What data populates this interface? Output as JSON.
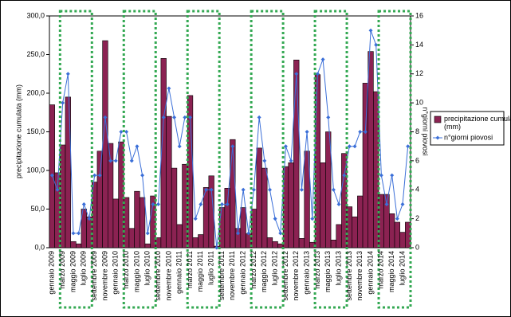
{
  "chart_data": {
    "type": "bar-line",
    "categories": [
      "gennaio 2009",
      null,
      "marzo 2009",
      null,
      "maggio 2009",
      null,
      "luglio 2009",
      null,
      "settembre 2009",
      null,
      "novembre 2009",
      null,
      "gennaio 2010",
      null,
      "marzo 2010",
      null,
      "maggio 2010",
      null,
      "luglio 2010",
      null,
      "settembre 2010",
      null,
      "novembre 2010",
      null,
      "gennaio 2011",
      null,
      "marzo 2011",
      null,
      "maggio 2011",
      null,
      "luglio 2011",
      null,
      "settembre 2011",
      null,
      "novembre 2011",
      null,
      "gennaio 2012",
      null,
      "marzo 2012",
      null,
      "maggio 2012",
      null,
      "luglio 2012",
      null,
      "settembre 2012",
      null,
      "novembre 2012",
      null,
      "gennaio 2013",
      null,
      "marzo 2013",
      null,
      "maggio 2013",
      null,
      "luglio 2013",
      null,
      "settembre 2013",
      null,
      "novembre 2013",
      null,
      "gennaio 2014",
      null,
      "marzo 2014",
      null,
      "maggio 2014",
      null,
      "luglio 2014",
      null
    ],
    "series": [
      {
        "name": "precipitazione cumulata (mm)",
        "color": "#8b2252",
        "values": [
          185,
          97,
          133,
          195,
          8,
          5,
          50,
          40,
          85,
          125,
          268,
          135,
          63,
          137,
          65,
          25,
          73,
          65,
          5,
          67,
          13,
          245,
          170,
          103,
          30,
          108,
          197,
          13,
          17,
          78,
          93,
          2,
          52,
          77,
          140,
          25,
          52,
          18,
          50,
          129,
          103,
          13,
          8,
          5,
          105,
          110,
          243,
          12,
          125,
          7,
          224,
          110,
          150,
          10,
          30,
          122,
          53,
          40,
          67,
          213,
          254,
          202,
          69,
          69,
          44,
          33,
          20,
          33
        ]
      },
      {
        "name": "n°giorni piovosi",
        "color": "#3b6fd8",
        "axis": "y2",
        "values": [
          5,
          4,
          10,
          12,
          1,
          1,
          3,
          2,
          5,
          5,
          9,
          6,
          6,
          8,
          8,
          6,
          7,
          5,
          1,
          3,
          3,
          9,
          11,
          9,
          7,
          9,
          9,
          2,
          3,
          4,
          4,
          0,
          3,
          3,
          7,
          1,
          4,
          1,
          4,
          9,
          6,
          4,
          2,
          1,
          7,
          6,
          12,
          4,
          8,
          2,
          12,
          13,
          9,
          4,
          3,
          5,
          7,
          7,
          8,
          8,
          15,
          14,
          5,
          3,
          5,
          2,
          3,
          7
        ]
      }
    ],
    "ylabel": "precipitazione cumulata (mm)",
    "y2label": "n°giorni piovosi",
    "ylim": [
      0,
      300
    ],
    "yticks": [
      {
        "value": 0,
        "label": "0,0"
      },
      {
        "value": 50,
        "label": "50,0"
      },
      {
        "value": 100,
        "label": "100,0"
      },
      {
        "value": 150,
        "label": "150,0"
      },
      {
        "value": 200,
        "label": "200,0"
      },
      {
        "value": 250,
        "label": "250,0"
      },
      {
        "value": 300,
        "label": "300,0"
      }
    ],
    "y2lim": [
      0,
      16
    ],
    "y2ticks": [
      0,
      2,
      4,
      6,
      8,
      10,
      12,
      14,
      16
    ],
    "legend": "right"
  }
}
